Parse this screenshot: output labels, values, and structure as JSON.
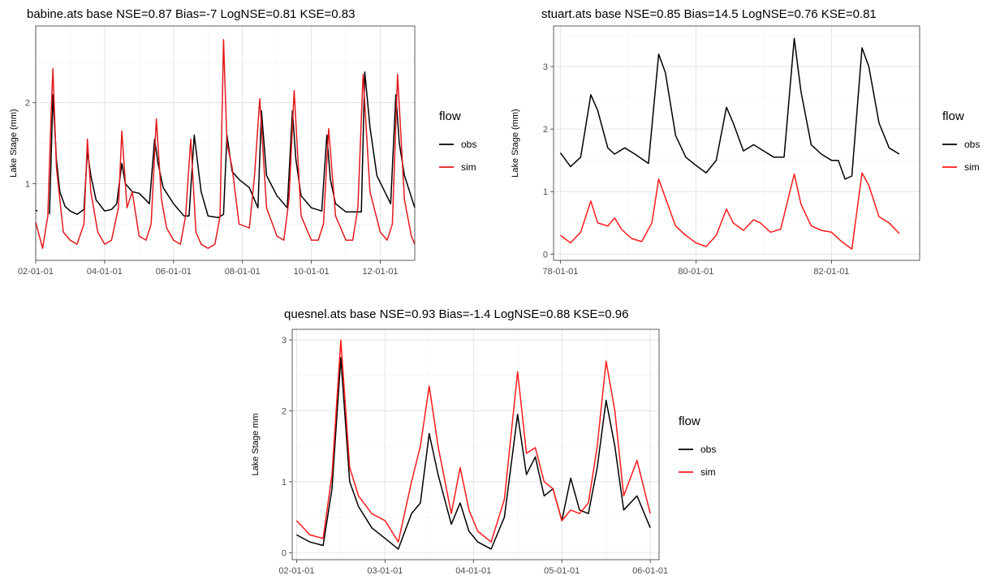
{
  "chart_data": [
    {
      "type": "line",
      "title": "babine.ats base NSE=0.87 Bias=-7 LogNSE=0.81 KSE=0.83",
      "xlabel": "",
      "ylabel": "Lake Stage (mm)",
      "xlim": [
        2002.0,
        2013.0
      ],
      "ylim": [
        0.05,
        2.95
      ],
      "x_ticks": [
        2002,
        2004,
        2006,
        2008,
        2010,
        2012
      ],
      "x_tick_labels": [
        "02-01-01",
        "04-01-01",
        "06-01-01",
        "08-01-01",
        "10-01-01",
        "12-01-01"
      ],
      "y_ticks": [
        1,
        2
      ],
      "y_tick_labels": [
        "1",
        "2"
      ],
      "grid": true,
      "legend": {
        "title": "flow",
        "position": "right",
        "entries": [
          "obs",
          "sim"
        ]
      },
      "series": [
        {
          "name": "obs",
          "color": "#000000",
          "x": [
            2002.0,
            2002.05,
            2002.3,
            2002.4,
            2002.5,
            2002.6,
            2002.7,
            2002.85,
            2003.0,
            2003.2,
            2003.4,
            2003.5,
            2003.6,
            2003.75,
            2004.0,
            2004.2,
            2004.35,
            2004.5,
            2004.6,
            2004.8,
            2005.0,
            2005.3,
            2005.45,
            2005.55,
            2005.7,
            2006.0,
            2006.3,
            2006.45,
            2006.6,
            2006.8,
            2007.0,
            2007.3,
            2007.45,
            2007.55,
            2007.7,
            2007.9,
            2008.2,
            2008.45,
            2008.55,
            2008.7,
            2009.0,
            2009.3,
            2009.45,
            2009.55,
            2009.7,
            2010.0,
            2010.3,
            2010.45,
            2010.55,
            2010.7,
            2011.0,
            2011.3,
            2011.45,
            2011.55,
            2011.7,
            2011.9,
            2012.3,
            2012.45,
            2012.55,
            2012.7,
            2013.0
          ],
          "y": [
            0.67,
            0.66,
            null,
            0.62,
            2.1,
            1.3,
            0.9,
            0.72,
            0.66,
            0.62,
            0.68,
            1.4,
            1.1,
            0.8,
            0.66,
            0.68,
            0.75,
            1.25,
            1.0,
            0.9,
            0.88,
            0.75,
            1.55,
            1.25,
            0.95,
            0.75,
            0.6,
            0.6,
            1.6,
            0.9,
            0.6,
            0.58,
            0.62,
            1.6,
            1.15,
            1.05,
            0.95,
            0.7,
            1.9,
            1.1,
            0.85,
            0.7,
            1.9,
            1.3,
            0.85,
            0.7,
            0.66,
            1.6,
            1.05,
            0.75,
            0.65,
            0.65,
            0.65,
            2.38,
            1.7,
            1.1,
            0.75,
            2.1,
            1.5,
            1.1,
            0.7
          ]
        },
        {
          "name": "sim",
          "color": "#e31a1c",
          "x": [
            2002.0,
            2002.2,
            2002.35,
            2002.45,
            2002.5,
            2002.6,
            2002.8,
            2003.0,
            2003.2,
            2003.4,
            2003.5,
            2003.6,
            2003.8,
            2004.0,
            2004.2,
            2004.4,
            2004.5,
            2004.65,
            2004.8,
            2005.0,
            2005.2,
            2005.35,
            2005.5,
            2005.65,
            2005.8,
            2006.0,
            2006.2,
            2006.35,
            2006.5,
            2006.65,
            2006.8,
            2007.0,
            2007.2,
            2007.35,
            2007.45,
            2007.55,
            2007.7,
            2007.9,
            2008.2,
            2008.35,
            2008.5,
            2008.7,
            2009.0,
            2009.2,
            2009.35,
            2009.5,
            2009.7,
            2010.0,
            2010.2,
            2010.35,
            2010.5,
            2010.7,
            2011.0,
            2011.2,
            2011.35,
            2011.5,
            2011.7,
            2012.0,
            2012.2,
            2012.35,
            2012.5,
            2012.7,
            2012.9,
            2013.0
          ],
          "y": [
            0.52,
            0.2,
            0.6,
            1.9,
            2.42,
            1.2,
            0.4,
            0.3,
            0.25,
            0.5,
            1.55,
            0.9,
            0.4,
            0.25,
            0.3,
            0.7,
            1.65,
            0.7,
            0.9,
            0.35,
            0.3,
            0.5,
            1.8,
            0.8,
            0.45,
            0.3,
            0.25,
            0.6,
            1.55,
            0.4,
            0.25,
            0.2,
            0.25,
            0.6,
            2.78,
            1.5,
            1.2,
            0.5,
            0.45,
            1.1,
            2.05,
            0.7,
            0.35,
            0.3,
            0.8,
            2.15,
            0.6,
            0.3,
            0.3,
            0.5,
            1.68,
            0.6,
            0.3,
            0.3,
            0.7,
            2.35,
            0.9,
            0.4,
            0.3,
            0.5,
            2.35,
            0.8,
            0.35,
            0.25
          ]
        }
      ]
    },
    {
      "type": "line",
      "title": "stuart.ats base NSE=0.85 Bias=14.5 LogNSE=0.76 KSE=0.81",
      "xlabel": "",
      "ylabel": "Lake Stage (mm)",
      "xlim": [
        1977.9,
        1983.3
      ],
      "ylim": [
        -0.1,
        3.65
      ],
      "x_ticks": [
        1978,
        1980,
        1982
      ],
      "x_tick_labels": [
        "78-01-01",
        "80-01-01",
        "82-01-01"
      ],
      "y_ticks": [
        0,
        1,
        2,
        3
      ],
      "y_tick_labels": [
        "0",
        "1",
        "2",
        "3"
      ],
      "grid": true,
      "legend": {
        "title": "flow",
        "position": "right",
        "entries": [
          "obs",
          "sim"
        ]
      },
      "series": [
        {
          "name": "obs",
          "color": "#000000",
          "x": [
            1978.0,
            1978.15,
            1978.3,
            1978.45,
            1978.55,
            1978.7,
            1978.8,
            1978.95,
            1979.1,
            1979.3,
            1979.45,
            1979.55,
            1979.7,
            1979.85,
            1980.0,
            1980.15,
            1980.3,
            1980.45,
            1980.55,
            1980.7,
            1980.85,
            1981.0,
            1981.15,
            1981.3,
            1981.45,
            1981.55,
            1981.7,
            1981.85,
            1982.0,
            1982.1,
            1982.2,
            1982.3,
            1982.45,
            1982.55,
            1982.7,
            1982.85,
            1983.0
          ],
          "y": [
            1.62,
            1.4,
            1.55,
            2.55,
            2.3,
            1.7,
            1.6,
            1.7,
            1.6,
            1.45,
            3.2,
            2.9,
            1.9,
            1.55,
            1.42,
            1.3,
            1.5,
            2.35,
            2.1,
            1.65,
            1.75,
            1.65,
            1.55,
            1.55,
            3.45,
            2.6,
            1.75,
            1.6,
            1.5,
            1.5,
            1.2,
            1.25,
            3.3,
            3.0,
            2.1,
            1.7,
            1.6
          ]
        },
        {
          "name": "sim",
          "color": "#ff1a1a",
          "x": [
            1978.0,
            1978.15,
            1978.3,
            1978.45,
            1978.55,
            1978.7,
            1978.8,
            1978.9,
            1979.05,
            1979.2,
            1979.35,
            1979.45,
            1979.55,
            1979.7,
            1979.85,
            1980.0,
            1980.15,
            1980.3,
            1980.45,
            1980.55,
            1980.7,
            1980.85,
            1980.95,
            1981.1,
            1981.25,
            1981.45,
            1981.55,
            1981.7,
            1981.85,
            1982.0,
            1982.15,
            1982.3,
            1982.45,
            1982.55,
            1982.7,
            1982.85,
            1983.0
          ],
          "y": [
            0.3,
            0.18,
            0.35,
            0.85,
            0.5,
            0.45,
            0.58,
            0.4,
            0.25,
            0.2,
            0.5,
            1.2,
            0.9,
            0.45,
            0.3,
            0.18,
            0.12,
            0.3,
            0.72,
            0.5,
            0.38,
            0.55,
            0.5,
            0.35,
            0.4,
            1.28,
            0.8,
            0.45,
            0.38,
            0.35,
            0.2,
            0.08,
            1.3,
            1.1,
            0.6,
            0.5,
            0.33
          ]
        }
      ]
    },
    {
      "type": "line",
      "title": "quesnel.ats base NSE=0.93 Bias=-1.4 LogNSE=0.88 KSE=0.96",
      "xlabel": "",
      "ylabel": "Lake Stage mm",
      "xlim": [
        2001.95,
        2006.1
      ],
      "ylim": [
        -0.1,
        3.15
      ],
      "x_ticks": [
        2002,
        2003,
        2004,
        2005,
        2006
      ],
      "x_tick_labels": [
        "02-01-01",
        "03-01-01",
        "04-01-01",
        "05-01-01",
        "06-01-01"
      ],
      "y_ticks": [
        0,
        1,
        2,
        3
      ],
      "y_tick_labels": [
        "0",
        "1",
        "2",
        "3"
      ],
      "grid": true,
      "legend": {
        "title": "flow",
        "position": "right",
        "entries": [
          "obs",
          "sim"
        ]
      },
      "series": [
        {
          "name": "obs",
          "color": "#000000",
          "x": [
            2002.0,
            2002.15,
            2002.3,
            2002.4,
            2002.5,
            2002.6,
            2002.7,
            2002.85,
            2003.0,
            2003.15,
            2003.3,
            2003.4,
            2003.5,
            2003.6,
            2003.75,
            2003.85,
            2003.95,
            2004.05,
            2004.2,
            2004.35,
            2004.5,
            2004.6,
            2004.7,
            2004.8,
            2004.9,
            2005.0,
            2005.1,
            2005.2,
            2005.3,
            2005.4,
            2005.5,
            2005.6,
            2005.7,
            2005.85,
            2006.0
          ],
          "y": [
            0.25,
            0.15,
            0.1,
            0.9,
            2.75,
            1.0,
            0.65,
            0.35,
            0.2,
            0.05,
            0.55,
            0.7,
            1.68,
            1.1,
            0.4,
            0.7,
            0.3,
            0.15,
            0.05,
            0.5,
            1.95,
            1.1,
            1.35,
            0.8,
            0.9,
            0.45,
            1.05,
            0.6,
            0.55,
            1.2,
            2.15,
            1.5,
            0.6,
            0.8,
            0.35
          ]
        },
        {
          "name": "sim",
          "color": "#ff1a1a",
          "x": [
            2002.0,
            2002.15,
            2002.3,
            2002.4,
            2002.5,
            2002.6,
            2002.7,
            2002.85,
            2003.0,
            2003.15,
            2003.3,
            2003.4,
            2003.5,
            2003.6,
            2003.75,
            2003.85,
            2003.95,
            2004.05,
            2004.2,
            2004.35,
            2004.5,
            2004.6,
            2004.7,
            2004.8,
            2004.9,
            2005.0,
            2005.1,
            2005.2,
            2005.3,
            2005.4,
            2005.5,
            2005.6,
            2005.7,
            2005.85,
            2006.0
          ],
          "y": [
            0.45,
            0.25,
            0.2,
            1.1,
            3.0,
            1.2,
            0.8,
            0.55,
            0.45,
            0.15,
            1.0,
            1.5,
            2.35,
            1.5,
            0.55,
            1.2,
            0.6,
            0.3,
            0.15,
            0.75,
            2.55,
            1.4,
            1.48,
            1.0,
            0.9,
            0.45,
            0.6,
            0.55,
            0.7,
            1.5,
            2.7,
            2.0,
            0.8,
            1.3,
            0.55
          ]
        }
      ]
    }
  ]
}
